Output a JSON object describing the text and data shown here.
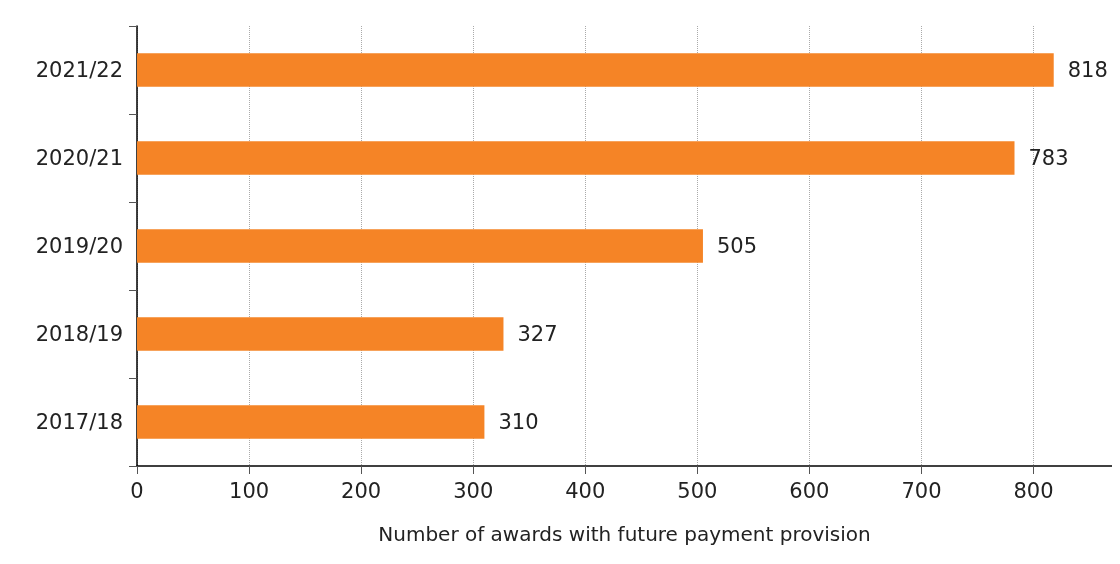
{
  "chart_data": {
    "type": "bar",
    "orientation": "horizontal",
    "xlabel": "Number of awards with future payment provision",
    "categories": [
      "2021/22",
      "2020/21",
      "2019/20",
      "2018/19",
      "2017/18"
    ],
    "values": [
      818,
      783,
      505,
      327,
      310
    ],
    "color": "#f58426",
    "data_labels": true,
    "grid": "x",
    "xlim": [
      0,
      870
    ],
    "xticks": [
      0,
      100,
      200,
      300,
      400,
      500,
      600,
      700,
      800
    ]
  }
}
